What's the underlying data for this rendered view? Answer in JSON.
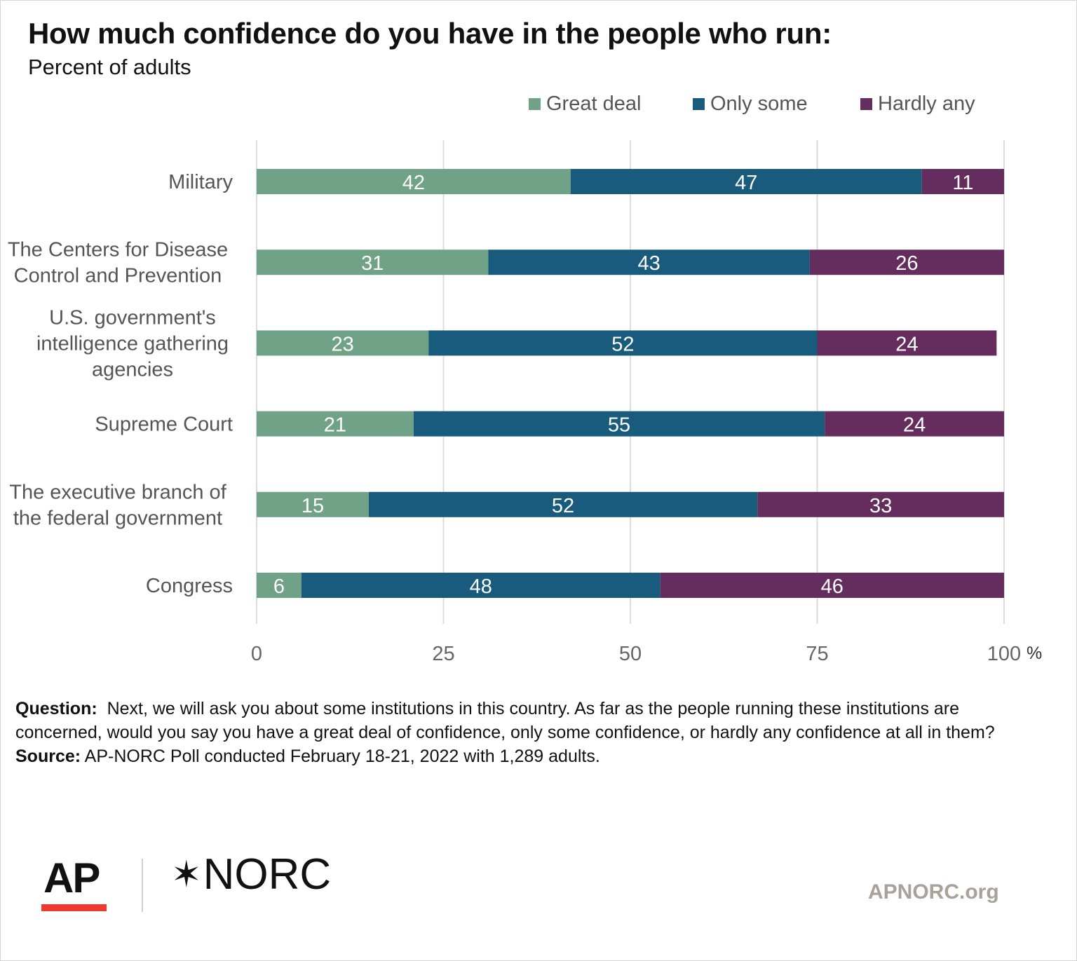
{
  "header": {
    "title": "How much confidence do you have in the people who run:",
    "subtitle": "Percent of adults"
  },
  "chart_data": {
    "type": "bar",
    "orientation": "horizontal",
    "stacked": true,
    "categories": [
      "Military",
      "The Centers for Disease Control and Prevention",
      "U.S. government's intelligence gathering agencies",
      "Supreme Court",
      "The executive branch of the federal government",
      "Congress"
    ],
    "series": [
      {
        "name": "Great deal",
        "color": "#6fa287",
        "values": [
          42,
          31,
          23,
          21,
          15,
          6
        ]
      },
      {
        "name": "Only some",
        "color": "#185b7c",
        "values": [
          47,
          43,
          52,
          55,
          52,
          48
        ]
      },
      {
        "name": "Hardly any",
        "color": "#642d5e",
        "values": [
          11,
          26,
          24,
          24,
          33,
          46
        ]
      }
    ],
    "xticks": [
      "0",
      "25",
      "50",
      "75",
      "100"
    ],
    "xunit": "%",
    "xlim": [
      0,
      100
    ],
    "grid": "vertical",
    "legend": "top-right",
    "data_labels": true
  },
  "notes": {
    "question_label": "Question:",
    "question_text": "Next, we will ask you about some institutions in this country. As far as the people running these institutions are concerned, would you say you have a great deal of confidence, only some confidence, or hardly any confidence at all in them?",
    "source_label": "Source:",
    "source_text": "AP-NORC Poll conducted February 18-21, 2022 with 1,289 adults."
  },
  "footer": {
    "logo_ap": "AP",
    "logo_norc": "NORC",
    "site": "APNORC.org"
  }
}
